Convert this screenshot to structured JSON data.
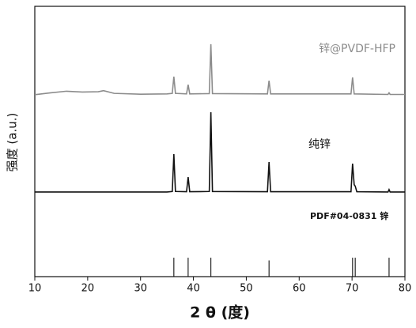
{
  "chart_data": {
    "type": "line",
    "x_label": "2 θ (度)",
    "y_label": "强度 (a.u.)",
    "xlim": [
      10,
      80
    ],
    "xticks": [
      10,
      20,
      30,
      40,
      50,
      60,
      70,
      80
    ],
    "ylim": [
      0,
      100
    ],
    "series": [
      {
        "name": "锌@PVDF-HFP",
        "type": "line",
        "color": "#8c8c8c",
        "x": [
          10,
          13,
          16,
          19,
          22,
          23,
          25,
          30,
          35,
          36.0,
          36.3,
          36.6,
          38.7,
          39.0,
          39.3,
          43.0,
          43.3,
          43.6,
          54.0,
          54.3,
          54.6,
          69.8,
          70.1,
          70.4,
          76.8,
          77.0,
          77.2,
          80
        ],
        "values": [
          67.3,
          68,
          68.6,
          68.3,
          68.4,
          68.8,
          67.8,
          67.5,
          67.6,
          67.8,
          74,
          67.8,
          67.6,
          71,
          67.6,
          67.7,
          86,
          67.7,
          67.6,
          72.5,
          67.6,
          67.6,
          73.7,
          67.6,
          67.4,
          68,
          67.4,
          67.4
        ]
      },
      {
        "name": "纯锌",
        "type": "line",
        "color": "#111111",
        "x": [
          10,
          35,
          36.0,
          36.3,
          36.6,
          38.7,
          39.0,
          39.3,
          43.0,
          43.3,
          43.6,
          54.0,
          54.3,
          54.6,
          69.8,
          70.1,
          70.4,
          70.6,
          70.9,
          76.8,
          77.0,
          77.2,
          80
        ],
        "values": [
          31.3,
          31.3,
          31.5,
          45.3,
          31.5,
          31.4,
          36.8,
          31.4,
          31.5,
          60.8,
          31.5,
          31.4,
          42.4,
          31.4,
          31.4,
          41.8,
          34,
          33.5,
          31.4,
          31.3,
          32.2,
          31.3,
          31.3
        ]
      },
      {
        "name": "PDF#04-0831 锌",
        "type": "stem",
        "color": "#111111",
        "x": [
          36.3,
          39.0,
          43.3,
          54.3,
          70.1,
          70.6,
          77.0
        ],
        "values": [
          7,
          7,
          7,
          6,
          7,
          7,
          7
        ]
      }
    ]
  }
}
